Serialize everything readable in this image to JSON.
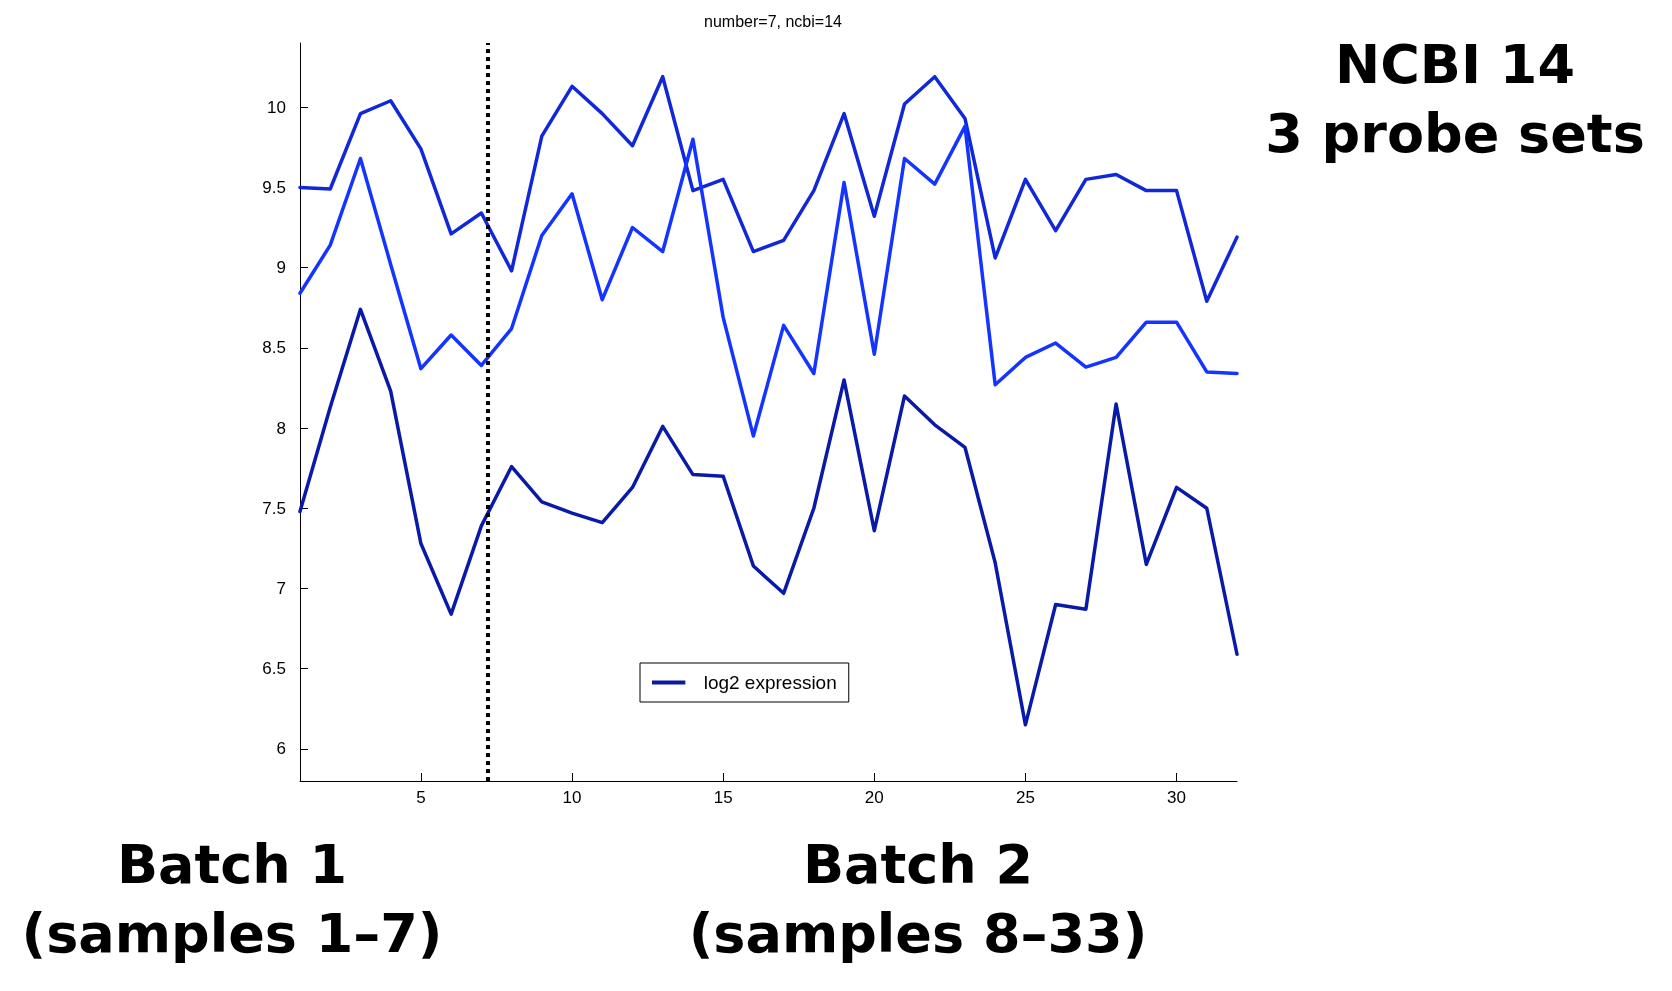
{
  "chart_data": {
    "type": "line",
    "title": "number=7, ncbi=14",
    "x": [
      1,
      2,
      3,
      4,
      5,
      6,
      7,
      8,
      9,
      10,
      11,
      12,
      13,
      14,
      15,
      16,
      17,
      18,
      19,
      20,
      21,
      22,
      23,
      24,
      25,
      26,
      27,
      28,
      29,
      30,
      31,
      32
    ],
    "series": [
      {
        "name": "log2 expression",
        "color": "#0a1aa8",
        "values": [
          7.48,
          8.13,
          8.74,
          8.23,
          7.28,
          6.84,
          7.39,
          7.76,
          7.54,
          7.47,
          7.41,
          7.63,
          8.01,
          7.71,
          7.7,
          7.14,
          6.97,
          7.5,
          8.3,
          7.36,
          8.2,
          8.02,
          7.88,
          7.16,
          6.15,
          6.9,
          6.87,
          8.15,
          7.15,
          7.63,
          7.5,
          6.59
        ]
      },
      {
        "color": "#1028d8",
        "values": [
          9.5,
          9.49,
          9.96,
          10.04,
          9.74,
          9.21,
          9.34,
          8.98,
          9.82,
          10.13,
          9.96,
          9.76,
          10.19,
          9.48,
          9.55,
          9.1,
          9.17,
          9.48,
          9.96,
          9.32,
          10.02,
          10.19,
          9.93,
          9.06,
          9.55,
          9.23,
          9.55,
          9.58,
          9.48,
          9.48,
          8.79,
          9.19
        ]
      },
      {
        "color": "#1434ff",
        "values": [
          8.84,
          9.14,
          9.68,
          9.02,
          8.37,
          8.58,
          8.39,
          8.62,
          9.2,
          9.46,
          8.8,
          9.25,
          9.1,
          9.8,
          8.69,
          7.95,
          8.64,
          8.34,
          9.53,
          8.46,
          9.68,
          9.52,
          9.88,
          8.27,
          8.44,
          8.53,
          8.38,
          8.44,
          8.66,
          8.66,
          8.35,
          8.34
        ]
      }
    ],
    "xlim": [
      1,
      32
    ],
    "xticks": [
      5,
      10,
      15,
      20,
      25,
      30
    ],
    "ylim": [
      5.8,
      10.4
    ],
    "yticks": [
      6,
      6.5,
      7,
      7.5,
      8,
      8.5,
      9,
      9.5,
      10
    ],
    "ref_lines": [
      {
        "axis": "x",
        "value": 7.2,
        "color": "#000000",
        "line_style": "dotted"
      }
    ],
    "annotations": [
      "NCBI 14\n3 probe sets",
      "Batch 1\n(samples 1–7)",
      "Batch 2\n(samples 8–33)"
    ],
    "grid": false,
    "legend": "bottom",
    "marker": "none",
    "line_style": "solid"
  }
}
